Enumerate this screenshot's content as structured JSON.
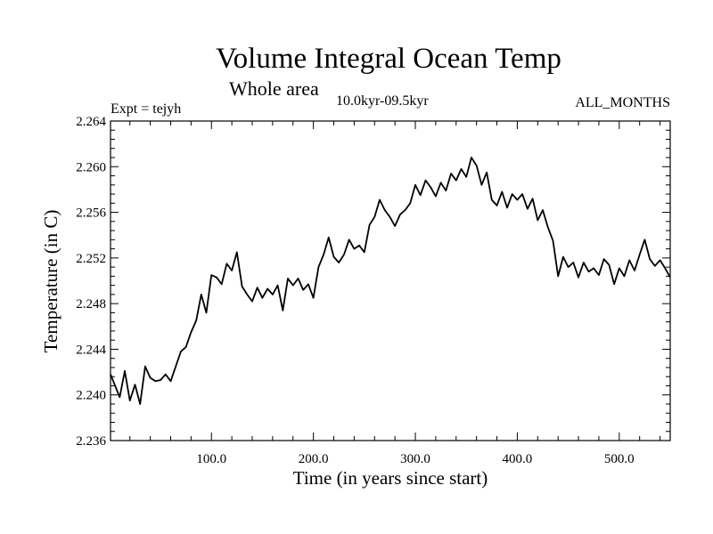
{
  "chart_data": {
    "type": "line",
    "title": "Volume Integral Ocean Temp",
    "subtitle": "Whole area",
    "period": "10.0kyr-09.5kyr",
    "experiment": "Expt = tejyh",
    "months": "ALL_MONTHS",
    "xlabel": "Time (in years since start)",
    "ylabel": "Temperature (in C)",
    "xlim": [
      1,
      550
    ],
    "ylim": [
      2.236,
      2.264
    ],
    "x_ticks": [
      100,
      200,
      300,
      400,
      500
    ],
    "x_tick_labels": [
      "100.0",
      "200.0",
      "300.0",
      "400.0",
      "500.0"
    ],
    "y_ticks": [
      2.236,
      2.24,
      2.244,
      2.248,
      2.252,
      2.256,
      2.26,
      2.264
    ],
    "y_tick_labels": [
      "2.236",
      "2.240",
      "2.244",
      "2.248",
      "2.252",
      "2.256",
      "2.260",
      "2.264"
    ],
    "grid": false,
    "series": [
      {
        "name": "Volume integral ocean temperature",
        "color": "#000000",
        "x": [
          1,
          10,
          15,
          20,
          25,
          30,
          35,
          40,
          45,
          50,
          55,
          60,
          65,
          70,
          75,
          80,
          85,
          90,
          95,
          100,
          105,
          110,
          115,
          120,
          125,
          130,
          135,
          140,
          145,
          150,
          155,
          160,
          165,
          170,
          175,
          180,
          185,
          190,
          195,
          200,
          205,
          210,
          215,
          220,
          225,
          230,
          235,
          240,
          245,
          250,
          255,
          260,
          265,
          270,
          275,
          280,
          285,
          290,
          295,
          300,
          305,
          310,
          315,
          320,
          325,
          330,
          335,
          340,
          345,
          350,
          355,
          360,
          365,
          370,
          375,
          380,
          385,
          390,
          395,
          400,
          405,
          410,
          415,
          420,
          425,
          430,
          435,
          440,
          445,
          450,
          455,
          460,
          465,
          470,
          475,
          480,
          485,
          490,
          495,
          500,
          505,
          510,
          515,
          520,
          525,
          530,
          535,
          540,
          545,
          550
        ],
        "values": [
          2.2418,
          2.2398,
          2.2421,
          2.2395,
          2.2409,
          2.2392,
          2.2425,
          2.2415,
          2.2412,
          2.2413,
          2.2418,
          2.2412,
          2.2425,
          2.2438,
          2.2442,
          2.2455,
          2.2465,
          2.2488,
          2.2472,
          2.2505,
          2.2503,
          2.2497,
          2.2515,
          2.2509,
          2.2525,
          2.2495,
          2.2488,
          2.2482,
          2.2494,
          2.2485,
          2.2493,
          2.2488,
          2.2496,
          2.2474,
          2.2502,
          2.2496,
          2.2502,
          2.2492,
          2.2497,
          2.2485,
          2.2512,
          2.2523,
          2.2538,
          2.2521,
          2.2516,
          2.2523,
          2.2536,
          2.2528,
          2.2531,
          2.2525,
          2.2549,
          2.2556,
          2.2571,
          2.2562,
          2.2556,
          2.2548,
          2.2558,
          2.2562,
          2.2568,
          2.2584,
          2.2575,
          2.2588,
          2.2582,
          2.2574,
          2.2586,
          2.2579,
          2.2594,
          2.2588,
          2.2598,
          2.2591,
          2.2608,
          2.2601,
          2.2584,
          2.2595,
          2.2571,
          2.2566,
          2.2578,
          2.2564,
          2.2576,
          2.2571,
          2.2576,
          2.2563,
          2.2572,
          2.2553,
          2.2562,
          2.2547,
          2.2535,
          2.2504,
          2.2521,
          2.2512,
          2.2516,
          2.2503,
          2.2516,
          2.2508,
          2.2511,
          2.2505,
          2.2519,
          2.2514,
          2.2497,
          2.2511,
          2.2504,
          2.2518,
          2.2509,
          2.2523,
          2.2536,
          2.2519,
          2.2513,
          2.2518,
          2.2511,
          2.2503
        ]
      }
    ]
  }
}
